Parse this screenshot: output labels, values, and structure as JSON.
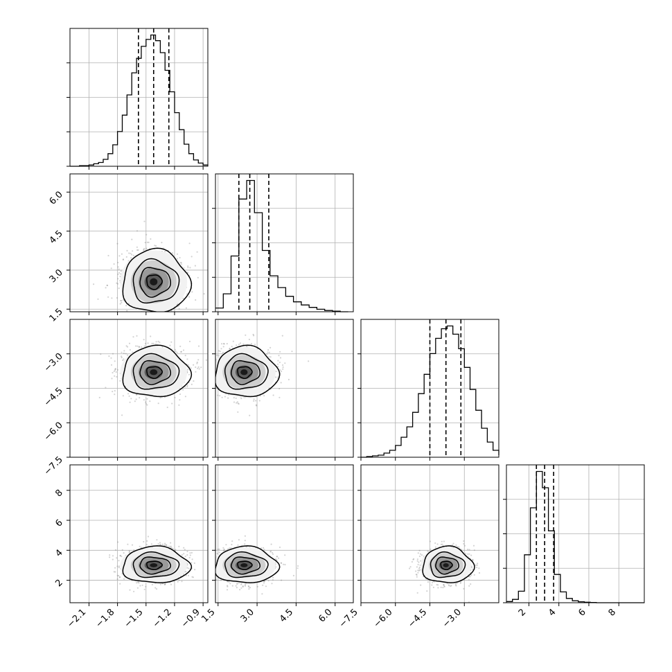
{
  "chart_data": {
    "type": "corner",
    "params": [
      {
        "range": [
          -2.3,
          -0.85
        ],
        "ticks": [
          -2.1,
          -1.8,
          -1.5,
          -1.2,
          -0.9
        ],
        "tick_labels": [
          "−2.1",
          "−1.8",
          "−1.5",
          "−1.2",
          "−0.9"
        ],
        "quantiles": [
          -1.58,
          -1.42,
          -1.26
        ],
        "mode": -1.42
      },
      {
        "range": [
          1.4,
          6.7
        ],
        "ticks": [
          1.5,
          3.0,
          4.5,
          6.0
        ],
        "tick_labels": [
          "1.5",
          "3.0",
          "4.5",
          "6.0"
        ],
        "quantiles": [
          2.3,
          2.72,
          3.45
        ],
        "mode": 2.5
      },
      {
        "range": [
          -7.5,
          -1.5
        ],
        "ticks": [
          -7.5,
          -6.0,
          -4.5,
          -3.0
        ],
        "tick_labels": [
          "−7.5",
          "−6.0",
          "−4.5",
          "−3.0"
        ],
        "quantiles": [
          -4.5,
          -3.8,
          -3.15
        ],
        "mode": -3.8
      },
      {
        "range": [
          0.5,
          9.7
        ],
        "ticks": [
          2,
          4,
          6,
          8
        ],
        "tick_labels": [
          "2",
          "4",
          "6",
          "8"
        ],
        "quantiles": [
          2.5,
          3.05,
          3.65
        ],
        "mode": 3.0
      }
    ],
    "histograms": [
      {
        "bins": [
          -2.3,
          -2.25,
          -2.2,
          -2.15,
          -2.1,
          -2.05,
          -2.0,
          -1.95,
          -1.9,
          -1.85,
          -1.8,
          -1.75,
          -1.7,
          -1.65,
          -1.6,
          -1.55,
          -1.5,
          -1.45,
          -1.4,
          -1.35,
          -1.3,
          -1.25,
          -1.2,
          -1.15,
          -1.1,
          -1.05,
          -1.0,
          -0.95,
          -0.9,
          -0.85
        ],
        "counts": [
          0,
          0,
          1,
          1,
          2,
          4,
          6,
          11,
          20,
          34,
          55,
          81,
          113,
          148,
          171,
          190,
          201,
          208,
          199,
          180,
          152,
          118,
          85,
          58,
          35,
          20,
          10,
          5,
          2,
          1
        ]
      },
      {
        "bins": [
          1.4,
          1.7,
          2.0,
          2.3,
          2.6,
          2.9,
          3.2,
          3.5,
          3.8,
          4.1,
          4.4,
          4.7,
          5.0,
          5.3,
          5.6,
          5.9,
          6.2,
          6.5
        ],
        "counts": [
          6,
          29,
          90,
          182,
          212,
          160,
          99,
          58,
          39,
          25,
          16,
          11,
          7,
          4,
          2,
          1,
          0
        ],
        "curve_x": [
          1.4,
          1.7,
          2.0,
          2.3,
          2.6,
          2.9,
          3.2,
          3.5,
          3.8,
          4.1,
          4.4,
          4.7,
          5.0,
          5.3,
          5.6,
          5.9,
          6.2,
          6.5,
          6.7
        ]
      },
      {
        "bins": [
          -7.5,
          -7.25,
          -7.0,
          -6.75,
          -6.5,
          -6.25,
          -6.0,
          -5.75,
          -5.5,
          -5.25,
          -5.0,
          -4.75,
          -4.5,
          -4.25,
          -4.0,
          -3.75,
          -3.5,
          -3.25,
          -3.0,
          -2.75,
          -2.5,
          -2.25,
          -2.0,
          -1.75,
          -1.5
        ],
        "counts": [
          0,
          1,
          2,
          3,
          6,
          10,
          17,
          29,
          44,
          65,
          92,
          120,
          150,
          172,
          186,
          190,
          178,
          157,
          130,
          98,
          68,
          42,
          22,
          10,
          3
        ]
      },
      {
        "bins": [
          0.5,
          0.9,
          1.3,
          1.7,
          2.1,
          2.5,
          2.9,
          3.3,
          3.7,
          4.1,
          4.5,
          4.9,
          5.3,
          5.7,
          6.1,
          6.5,
          6.9,
          7.3,
          7.7,
          8.1,
          8.5,
          8.9,
          9.3,
          9.7
        ],
        "counts": [
          5,
          14,
          48,
          200,
          396,
          548,
          480,
          300,
          118,
          45,
          18,
          8,
          4,
          2,
          1,
          0,
          0,
          0,
          0,
          0,
          0,
          0,
          0
        ]
      }
    ],
    "pairs": [
      {
        "row": 1,
        "col": 0,
        "center": [
          -1.42,
          2.55
        ],
        "sd": [
          0.16,
          0.55
        ]
      },
      {
        "row": 2,
        "col": 0,
        "center": [
          -1.42,
          -3.8
        ],
        "sd": [
          0.16,
          0.5
        ]
      },
      {
        "row": 2,
        "col": 1,
        "center": [
          2.5,
          -3.8
        ],
        "sd": [
          0.55,
          0.5
        ]
      },
      {
        "row": 3,
        "col": 0,
        "center": [
          -1.42,
          3.0
        ],
        "sd": [
          0.16,
          0.55
        ]
      },
      {
        "row": 3,
        "col": 1,
        "center": [
          2.5,
          3.0
        ],
        "sd": [
          0.55,
          0.55
        ]
      },
      {
        "row": 3,
        "col": 2,
        "center": [
          -3.8,
          3.0
        ],
        "sd": [
          0.5,
          0.55
        ]
      }
    ],
    "grid": true,
    "colors": {
      "line": "#000000",
      "grid": "#b0b0b0",
      "points": "#808080"
    }
  }
}
